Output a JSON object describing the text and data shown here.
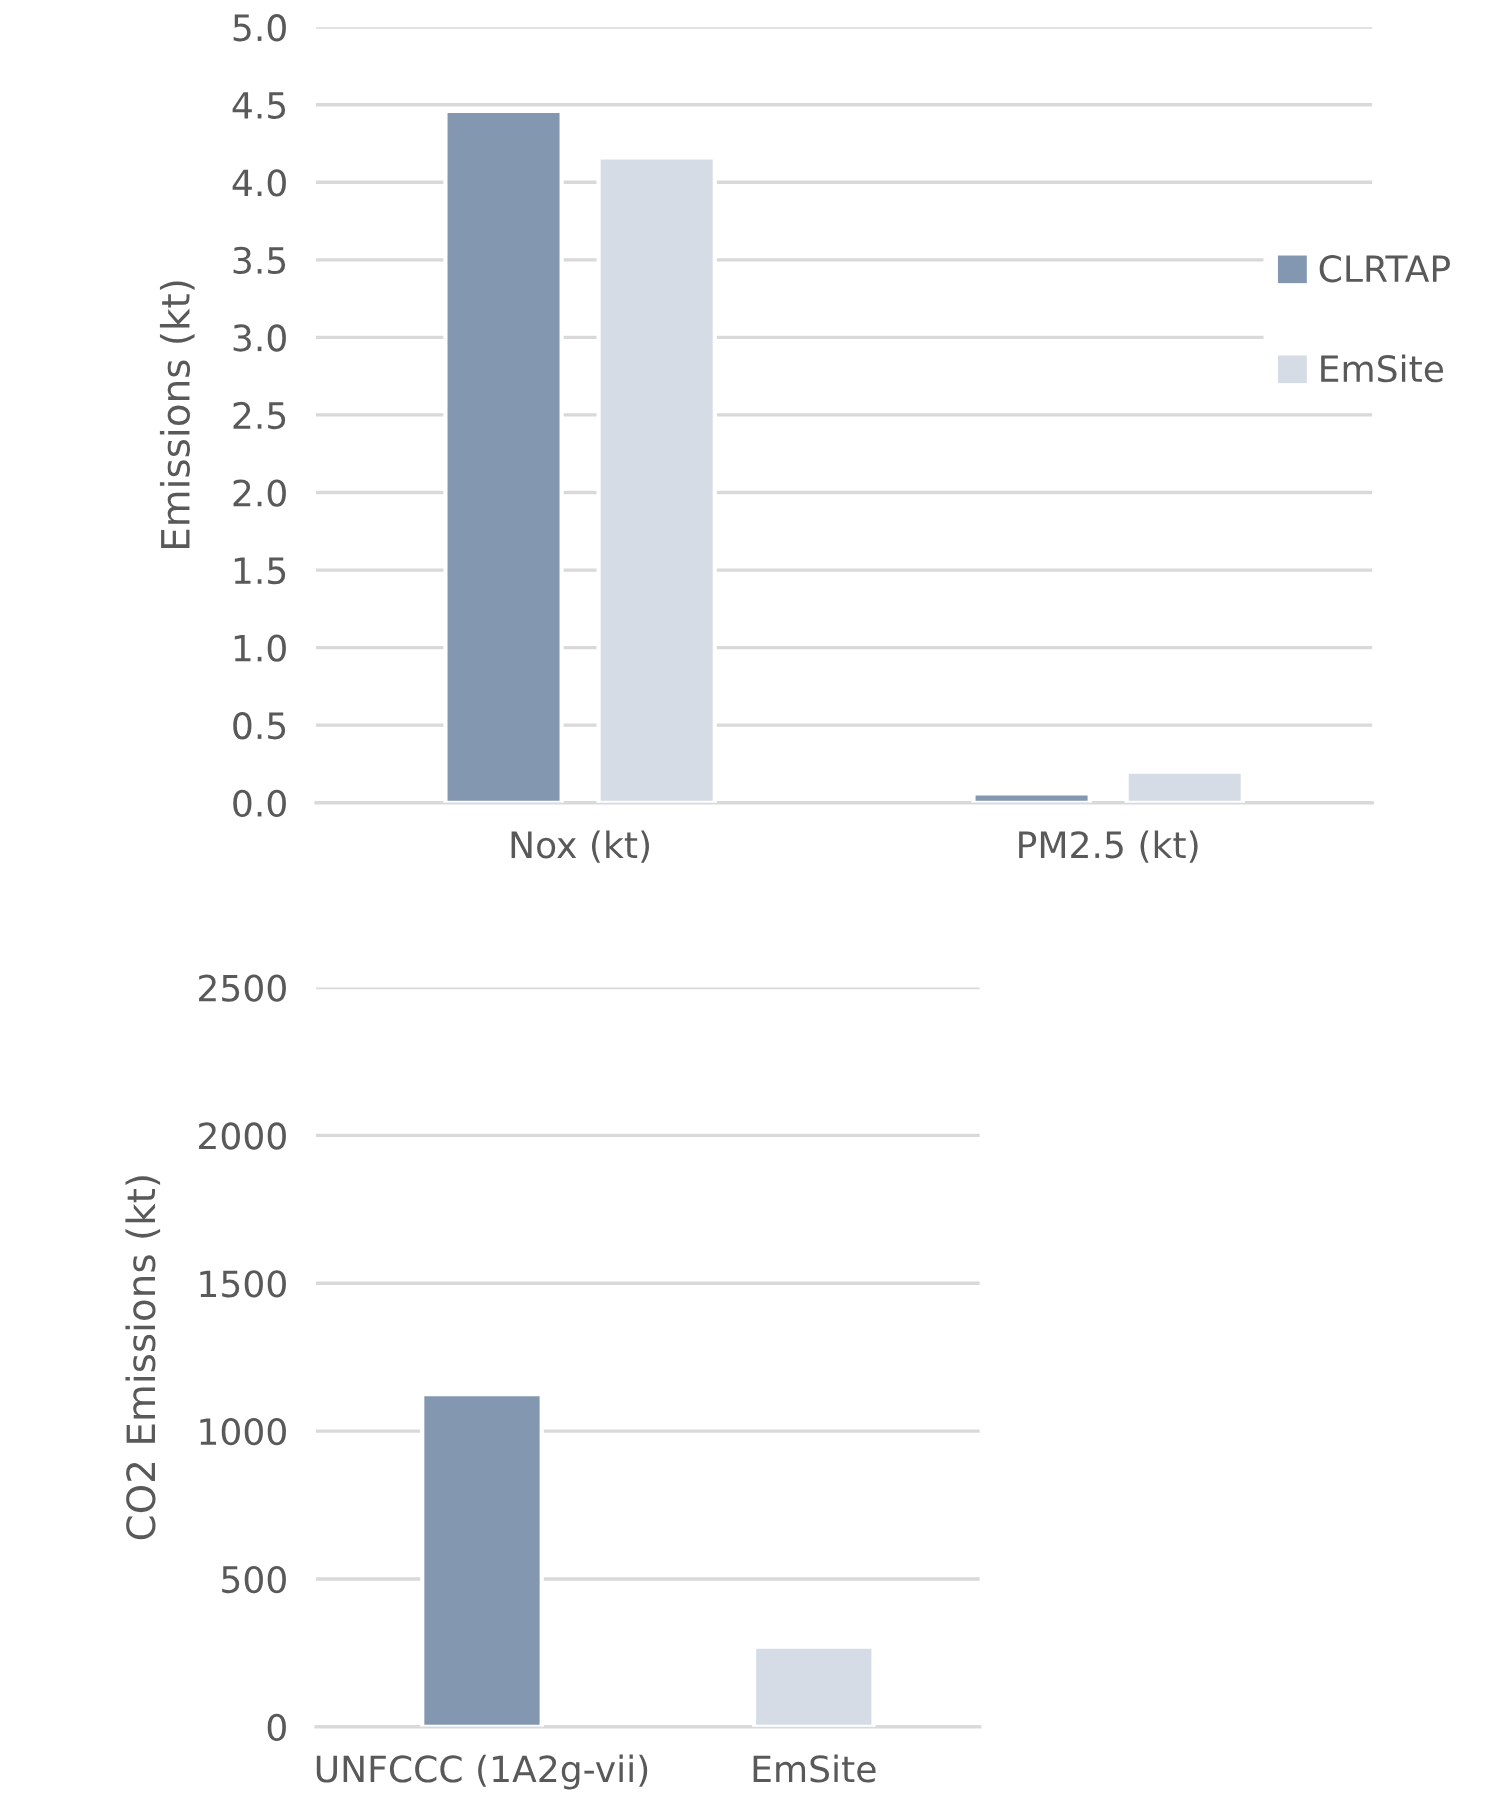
{
  "chart_data": [
    {
      "type": "bar",
      "ylabel": "Emissions (kt)",
      "categories": [
        "Nox (kt)",
        "PM2.5 (kt)"
      ],
      "series": [
        {
          "name": "CLRTAP",
          "color": "#8497b0",
          "values": [
            4.46,
            0.06
          ]
        },
        {
          "name": "EmSite",
          "color": "#d6dce5",
          "values": [
            4.16,
            0.2
          ]
        }
      ],
      "ylim": [
        0,
        5
      ],
      "yticks": [
        {
          "value": 0,
          "label": "0.0"
        },
        {
          "value": 0.5,
          "label": "0.5"
        },
        {
          "value": 1,
          "label": "1.0"
        },
        {
          "value": 1.5,
          "label": "1.5"
        },
        {
          "value": 2,
          "label": "2.0"
        },
        {
          "value": 2.5,
          "label": "2.5"
        },
        {
          "value": 3,
          "label": "3.0"
        },
        {
          "value": 3.5,
          "label": "3.5"
        },
        {
          "value": 4,
          "label": "4.0"
        },
        {
          "value": 4.5,
          "label": "4.5"
        },
        {
          "value": 5,
          "label": "5.0"
        }
      ],
      "grid": "y",
      "legend": "right"
    },
    {
      "type": "bar",
      "ylabel": "CO2 Emissions (kt)",
      "categories": [
        "UNFCCC (1A2g-vii)",
        "EmSite"
      ],
      "values": [
        1125,
        271
      ],
      "colors": [
        "#8497b0",
        "#d6dce5"
      ],
      "ylim": [
        0,
        2500
      ],
      "yticks": [
        0,
        500,
        1000,
        1500,
        2000,
        2500
      ],
      "grid": "y"
    }
  ]
}
